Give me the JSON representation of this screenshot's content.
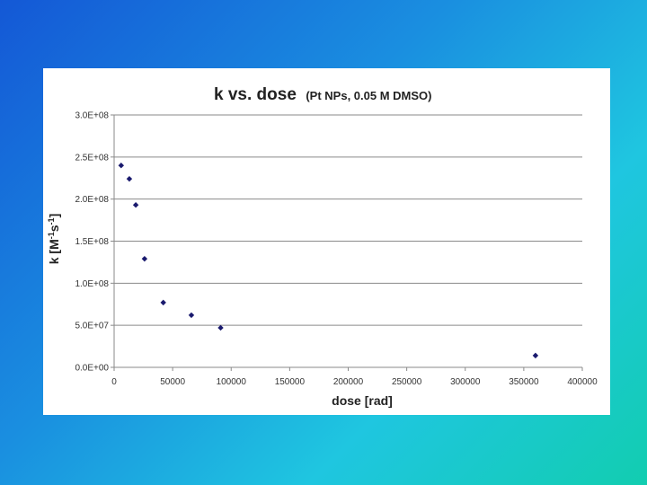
{
  "chart_data": {
    "type": "scatter",
    "title": "k vs. dose",
    "subtitle": "(Pt NPs, 0.05 M DMSO)",
    "xlabel": "dose [rad]",
    "ylabel_parts": [
      "k [M",
      "-1",
      "s",
      "-1",
      "]"
    ],
    "xlim": [
      0,
      400000
    ],
    "ylim": [
      0,
      300000000
    ],
    "x_ticks": [
      0,
      50000,
      100000,
      150000,
      200000,
      250000,
      300000,
      350000,
      400000
    ],
    "x_tick_labels": [
      "0",
      "50000",
      "100000",
      "150000",
      "200000",
      "250000",
      "300000",
      "350000",
      "400000"
    ],
    "y_ticks": [
      0,
      50000000,
      100000000,
      150000000,
      200000000,
      250000000,
      300000000
    ],
    "y_tick_labels": [
      "0.0E+00",
      "5.0E+07",
      "1.0E+08",
      "1.5E+08",
      "2.0E+08",
      "2.5E+08",
      "3.0E+08"
    ],
    "grid": "horizontal",
    "marker_color": "#1a1a6e",
    "points": [
      {
        "x": 6000,
        "y": 240000000
      },
      {
        "x": 13000,
        "y": 224000000
      },
      {
        "x": 18500,
        "y": 193000000
      },
      {
        "x": 26000,
        "y": 129000000
      },
      {
        "x": 42000,
        "y": 77000000
      },
      {
        "x": 66000,
        "y": 62000000
      },
      {
        "x": 91000,
        "y": 47000000
      },
      {
        "x": 360000,
        "y": 14000000
      }
    ]
  }
}
